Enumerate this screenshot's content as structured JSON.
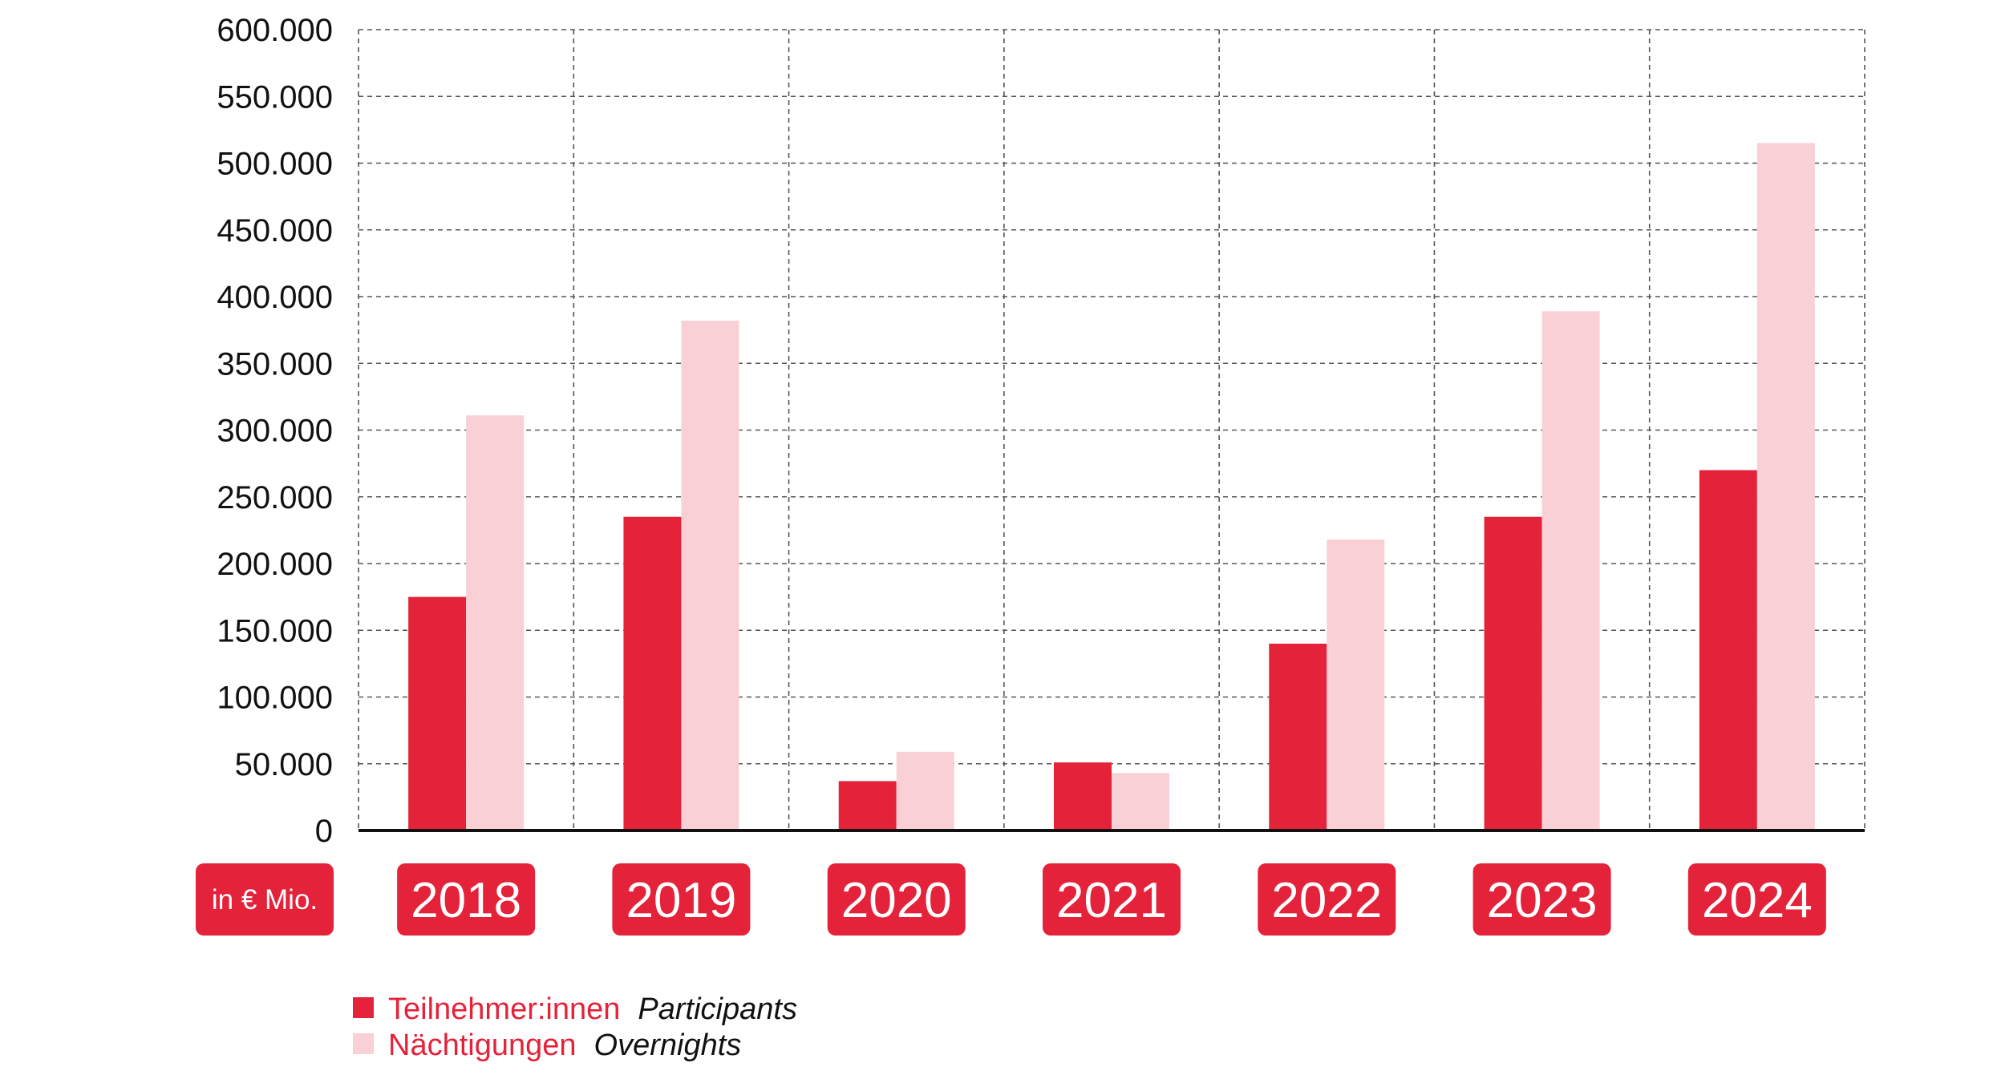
{
  "chart_data": {
    "type": "bar",
    "title": "",
    "xlabel": "",
    "ylabel": "",
    "unit_label": "in € Mio.",
    "categories": [
      "2018",
      "2019",
      "2020",
      "2021",
      "2022",
      "2023",
      "2024"
    ],
    "series": [
      {
        "name": "Teilnehmer:innen",
        "name_en": "Participants",
        "color": "#e4223a",
        "values": [
          175000,
          235000,
          37000,
          51000,
          140000,
          235000,
          270000
        ]
      },
      {
        "name": "Nächtigungen",
        "name_en": "Overnights",
        "color": "#f8d0d6",
        "values": [
          311000,
          382000,
          59000,
          43000,
          218000,
          389000,
          515000
        ]
      }
    ],
    "ylim": [
      0,
      600000
    ],
    "yticks": [
      0,
      50000,
      100000,
      150000,
      200000,
      250000,
      300000,
      350000,
      400000,
      450000,
      500000,
      550000,
      600000
    ],
    "ytick_labels": [
      "0",
      "50.000",
      "100.000",
      "150.000",
      "200.000",
      "250.000",
      "300.000",
      "350.000",
      "400.000",
      "450.000",
      "500.000",
      "550.000",
      "600.000"
    ],
    "grid": true,
    "legend_position": "bottom-left"
  },
  "colors": {
    "accent": "#e4223a",
    "light": "#f8d0d6",
    "grid": "#555555",
    "axis": "#111111"
  }
}
